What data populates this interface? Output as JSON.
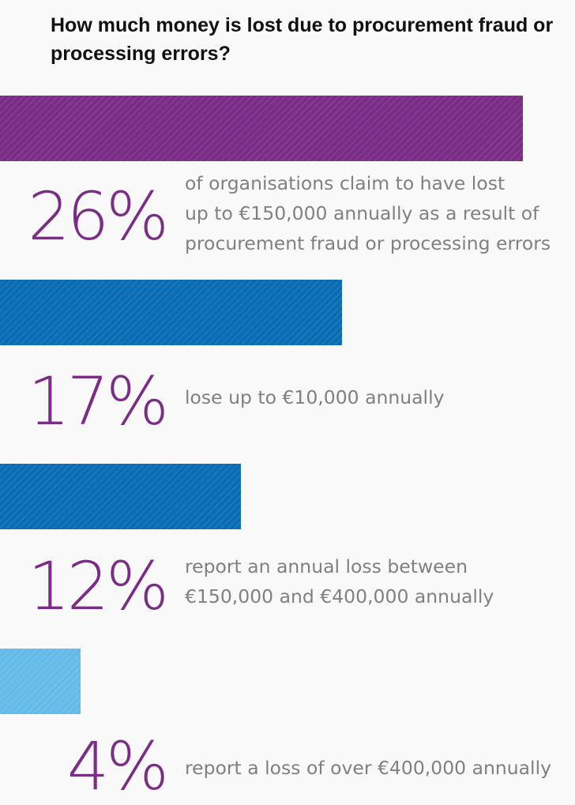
{
  "title": "How much money is lost due to procurement fraud or processing errors?",
  "colors": {
    "background": "#f9f9fa",
    "percent_text": "#7b2c87",
    "description_text": "#808080"
  },
  "chart_data": {
    "type": "bar",
    "orientation": "horizontal",
    "title": "How much money is lost due to procurement fraud or processing errors?",
    "xlim": [
      0,
      28.6
    ],
    "grid": false,
    "axes_visible": false,
    "categories": [
      "of organisations claim to have lost\nup to €150,000 annually as a result of\nprocurement fraud or processing errors",
      "lose up to €10,000 annually",
      "report an annual loss between\n€150,000 and €400,000 annually",
      "report a loss of over €400,000 annually"
    ],
    "values": [
      26,
      17,
      12,
      4
    ],
    "value_labels": [
      "26%",
      "17%",
      "12%",
      "4%"
    ],
    "bar_colors": [
      "#7b2c87",
      "#0a6cb4",
      "#0a6cb4",
      "#65bbe8"
    ],
    "unit": "%"
  }
}
